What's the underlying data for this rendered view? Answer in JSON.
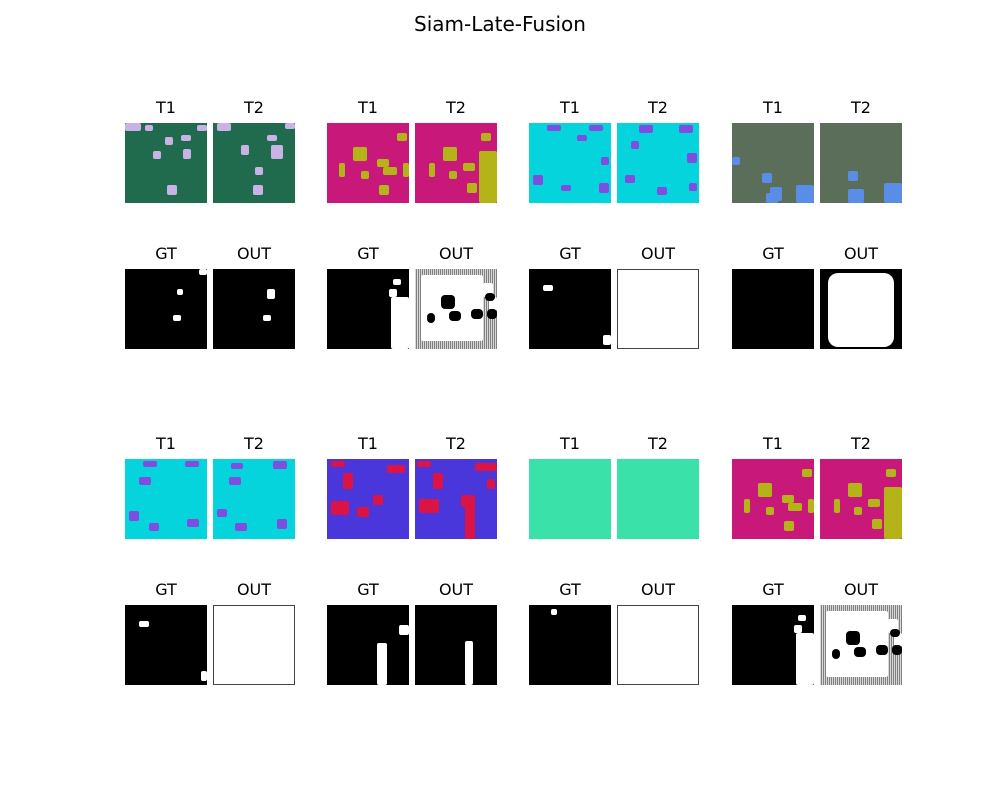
{
  "title": "Siam-Late-Fusion",
  "colors": {
    "green_bg": "#206a4e",
    "lavender": "#c9b3e6",
    "magenta": "#c8197a",
    "olive": "#b4b418",
    "cyan": "#06d4dc",
    "violet": "#7f4ee0",
    "slate": "#5a6e5a",
    "blue": "#5a8ee6",
    "indigo": "#4a37dc",
    "crimson": "#dc1446",
    "mint": "#3ae2aa"
  },
  "groups": [
    {
      "t1_label": "T1",
      "t2_label": "T2",
      "gt_label": "GT",
      "out_label": "OUT",
      "t1": {
        "bg": "#206a4e",
        "fg": "#c9b3e6",
        "blobs": [
          [
            0,
            0,
            16,
            8
          ],
          [
            40,
            14,
            8,
            8
          ],
          [
            20,
            2,
            8,
            6
          ],
          [
            56,
            12,
            10,
            6
          ],
          [
            28,
            28,
            8,
            8
          ],
          [
            58,
            26,
            8,
            10
          ],
          [
            42,
            62,
            10,
            10
          ],
          [
            72,
            2,
            10,
            6
          ]
        ]
      },
      "t2": {
        "bg": "#206a4e",
        "fg": "#c9b3e6",
        "blobs": [
          [
            4,
            0,
            14,
            8
          ],
          [
            58,
            22,
            12,
            14
          ],
          [
            28,
            22,
            8,
            10
          ],
          [
            40,
            62,
            10,
            10
          ],
          [
            54,
            12,
            10,
            6
          ],
          [
            72,
            0,
            10,
            6
          ],
          [
            42,
            44,
            8,
            8
          ]
        ]
      },
      "gt": {
        "bg": "#000000",
        "fg": "#ffffff",
        "blobs": [
          [
            52,
            20,
            6,
            6
          ],
          [
            48,
            46,
            8,
            6
          ],
          [
            74,
            0,
            8,
            6
          ]
        ]
      },
      "out": {
        "bg": "#000000",
        "fg": "#ffffff",
        "blobs": [
          [
            54,
            20,
            8,
            10
          ],
          [
            50,
            46,
            8,
            6
          ]
        ]
      }
    },
    {
      "t1_label": "T1",
      "t2_label": "T2",
      "gt_label": "GT",
      "out_label": "OUT",
      "t1": {
        "bg": "#c8197a",
        "fg": "#b4b418",
        "blobs": [
          [
            26,
            24,
            14,
            14
          ],
          [
            50,
            36,
            12,
            8
          ],
          [
            56,
            44,
            14,
            8
          ],
          [
            70,
            10,
            10,
            8
          ],
          [
            12,
            40,
            6,
            14
          ],
          [
            52,
            62,
            10,
            10
          ],
          [
            76,
            40,
            6,
            14
          ],
          [
            34,
            48,
            8,
            8
          ]
        ]
      },
      "t2": {
        "bg": "#c8197a",
        "fg": "#b4b418",
        "blobs": [
          [
            28,
            24,
            14,
            14
          ],
          [
            48,
            40,
            12,
            8
          ],
          [
            64,
            28,
            18,
            52
          ],
          [
            66,
            10,
            10,
            8
          ],
          [
            14,
            40,
            6,
            14
          ],
          [
            52,
            60,
            10,
            10
          ],
          [
            34,
            48,
            8,
            8
          ]
        ]
      },
      "gt": {
        "bg": "#000000",
        "fg": "#ffffff",
        "blobs": [
          [
            62,
            20,
            8,
            8
          ],
          [
            64,
            28,
            18,
            52
          ],
          [
            66,
            10,
            8,
            6
          ]
        ]
      },
      "out": {
        "bg": "#808080",
        "fg": "#ffffff",
        "blobs": [
          [
            6,
            6,
            62,
            66
          ],
          [
            68,
            14,
            10,
            14
          ],
          [
            74,
            28,
            8,
            14
          ]
        ]
      }
    },
    {
      "t1_label": "T1",
      "t2_label": "T2",
      "gt_label": "GT",
      "out_label": "OUT",
      "t1": {
        "bg": "#06d4dc",
        "fg": "#7f4ee0",
        "blobs": [
          [
            18,
            2,
            14,
            6
          ],
          [
            60,
            2,
            14,
            6
          ],
          [
            72,
            34,
            8,
            8
          ],
          [
            4,
            52,
            10,
            10
          ],
          [
            32,
            62,
            10,
            6
          ],
          [
            70,
            60,
            10,
            10
          ],
          [
            48,
            12,
            10,
            6
          ]
        ]
      },
      "t2": {
        "bg": "#06d4dc",
        "fg": "#7f4ee0",
        "blobs": [
          [
            22,
            2,
            14,
            8
          ],
          [
            62,
            2,
            14,
            8
          ],
          [
            14,
            18,
            8,
            8
          ],
          [
            70,
            30,
            10,
            10
          ],
          [
            8,
            52,
            10,
            8
          ],
          [
            40,
            64,
            10,
            8
          ],
          [
            72,
            60,
            8,
            8
          ]
        ]
      },
      "gt": {
        "bg": "#000000",
        "fg": "#ffffff",
        "blobs": [
          [
            14,
            16,
            10,
            6
          ],
          [
            74,
            66,
            8,
            10
          ]
        ]
      },
      "out": {
        "bg": "#ffffff",
        "fg": "#ffffff",
        "blobs": []
      }
    },
    {
      "t1_label": "T1",
      "t2_label": "T2",
      "gt_label": "GT",
      "out_label": "OUT",
      "t1": {
        "bg": "#5a6e5a",
        "fg": "#5a8ee6",
        "blobs": [
          [
            0,
            34,
            8,
            8
          ],
          [
            30,
            50,
            10,
            10
          ],
          [
            38,
            64,
            12,
            14
          ],
          [
            64,
            62,
            18,
            18
          ],
          [
            34,
            70,
            12,
            10
          ]
        ]
      },
      "t2": {
        "bg": "#5a6e5a",
        "fg": "#5a8ee6",
        "blobs": [
          [
            28,
            48,
            10,
            10
          ],
          [
            28,
            66,
            16,
            14
          ],
          [
            64,
            60,
            18,
            20
          ]
        ]
      },
      "gt": {
        "bg": "#000000",
        "fg": "#ffffff",
        "blobs": []
      },
      "out": {
        "bg": "#000000",
        "fg": "#ffffff",
        "blobs": [
          [
            8,
            4,
            66,
            74
          ]
        ]
      }
    },
    {
      "t1_label": "T1",
      "t2_label": "T2",
      "gt_label": "GT",
      "out_label": "OUT",
      "t1": {
        "bg": "#06d4dc",
        "fg": "#7f4ee0",
        "blobs": [
          [
            18,
            2,
            14,
            6
          ],
          [
            60,
            2,
            14,
            6
          ],
          [
            14,
            18,
            12,
            8
          ],
          [
            4,
            52,
            10,
            10
          ],
          [
            24,
            64,
            10,
            8
          ],
          [
            62,
            60,
            12,
            8
          ]
        ]
      },
      "t2": {
        "bg": "#06d4dc",
        "fg": "#7f4ee0",
        "blobs": [
          [
            18,
            4,
            12,
            6
          ],
          [
            60,
            2,
            14,
            8
          ],
          [
            16,
            18,
            12,
            8
          ],
          [
            4,
            50,
            10,
            8
          ],
          [
            22,
            64,
            12,
            8
          ],
          [
            64,
            60,
            10,
            10
          ]
        ]
      },
      "gt": {
        "bg": "#000000",
        "fg": "#ffffff",
        "blobs": [
          [
            14,
            16,
            10,
            6
          ],
          [
            76,
            66,
            6,
            10
          ]
        ]
      },
      "out": {
        "bg": "#ffffff",
        "fg": "#ffffff",
        "blobs": []
      }
    },
    {
      "t1_label": "T1",
      "t2_label": "T2",
      "gt_label": "GT",
      "out_label": "OUT",
      "t1": {
        "bg": "#4a37dc",
        "fg": "#dc1446",
        "blobs": [
          [
            4,
            2,
            14,
            6
          ],
          [
            60,
            6,
            18,
            8
          ],
          [
            16,
            14,
            10,
            16
          ],
          [
            4,
            42,
            18,
            14
          ],
          [
            30,
            48,
            12,
            10
          ],
          [
            46,
            36,
            10,
            10
          ]
        ]
      },
      "t2": {
        "bg": "#4a37dc",
        "fg": "#dc1446",
        "blobs": [
          [
            2,
            2,
            14,
            6
          ],
          [
            60,
            4,
            22,
            8
          ],
          [
            18,
            14,
            10,
            16
          ],
          [
            4,
            40,
            20,
            14
          ],
          [
            46,
            36,
            14,
            12
          ],
          [
            50,
            38,
            10,
            42
          ],
          [
            72,
            20,
            8,
            10
          ]
        ]
      },
      "gt": {
        "bg": "#000000",
        "fg": "#ffffff",
        "blobs": [
          [
            72,
            20,
            10,
            10
          ],
          [
            50,
            38,
            10,
            42
          ]
        ]
      },
      "out": {
        "bg": "#000000",
        "fg": "#ffffff",
        "blobs": [
          [
            50,
            36,
            8,
            44
          ]
        ]
      }
    },
    {
      "t1_label": "T1",
      "t2_label": "T2",
      "gt_label": "GT",
      "out_label": "OUT",
      "t1": {
        "bg": "#3ae2aa",
        "fg": "#3ae2aa",
        "blobs": []
      },
      "t2": {
        "bg": "#3ae2aa",
        "fg": "#3ae2aa",
        "blobs": []
      },
      "gt": {
        "bg": "#000000",
        "fg": "#ffffff",
        "blobs": [
          [
            22,
            4,
            6,
            6
          ]
        ]
      },
      "out": {
        "bg": "#ffffff",
        "fg": "#ffffff",
        "blobs": []
      }
    },
    {
      "t1_label": "T1",
      "t2_label": "T2",
      "gt_label": "GT",
      "out_label": "OUT",
      "t1": {
        "bg": "#c8197a",
        "fg": "#b4b418",
        "blobs": [
          [
            26,
            24,
            14,
            14
          ],
          [
            50,
            36,
            12,
            8
          ],
          [
            56,
            44,
            14,
            8
          ],
          [
            70,
            10,
            10,
            8
          ],
          [
            12,
            40,
            6,
            14
          ],
          [
            52,
            62,
            10,
            10
          ],
          [
            76,
            40,
            6,
            14
          ],
          [
            34,
            48,
            8,
            8
          ]
        ]
      },
      "t2": {
        "bg": "#c8197a",
        "fg": "#b4b418",
        "blobs": [
          [
            28,
            24,
            14,
            14
          ],
          [
            48,
            40,
            12,
            8
          ],
          [
            64,
            28,
            18,
            52
          ],
          [
            66,
            10,
            10,
            8
          ],
          [
            14,
            40,
            6,
            14
          ],
          [
            52,
            60,
            10,
            10
          ],
          [
            34,
            48,
            8,
            8
          ]
        ]
      },
      "gt": {
        "bg": "#000000",
        "fg": "#ffffff",
        "blobs": [
          [
            62,
            20,
            8,
            8
          ],
          [
            64,
            28,
            18,
            52
          ],
          [
            66,
            10,
            8,
            6
          ]
        ]
      },
      "out": {
        "bg": "#808080",
        "fg": "#ffffff",
        "blobs": [
          [
            6,
            6,
            62,
            66
          ],
          [
            68,
            14,
            10,
            14
          ],
          [
            74,
            28,
            8,
            14
          ]
        ]
      }
    }
  ]
}
